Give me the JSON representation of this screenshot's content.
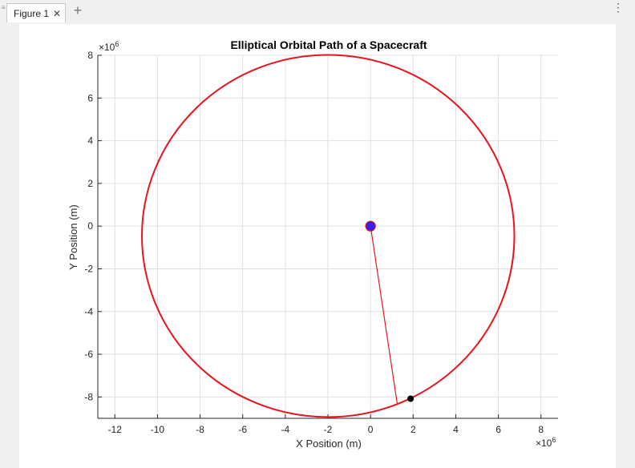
{
  "window": {
    "tab_label": "Figure 1",
    "close_glyph": "✕",
    "add_glyph": "+",
    "menu_glyph": "⋮"
  },
  "chart_data": {
    "type": "line",
    "title": "Elliptical Orbital Path of a Spacecraft",
    "xlabel": "X Position (m)",
    "ylabel": "Y Position (m)",
    "x_exponent": "×10",
    "x_exponent_power": "6",
    "y_exponent": "×10",
    "y_exponent_power": "6",
    "xlim": [
      -12.8,
      8.8
    ],
    "ylim": [
      -9.0,
      8.0
    ],
    "scale": 1000000,
    "x_ticks": [
      -12,
      -10,
      -8,
      -6,
      -4,
      -2,
      0,
      2,
      4,
      6,
      8
    ],
    "y_ticks": [
      -8,
      -6,
      -4,
      -2,
      0,
      2,
      4,
      6,
      8
    ],
    "grid": true,
    "orbit": {
      "center_x": -1.99,
      "center_y": -0.46,
      "semi_axis_x": 8.74,
      "semi_axis_y": 8.48,
      "color": "#e8141e"
    },
    "planet": {
      "x": 0,
      "y": 0,
      "color": "#3c1ef0",
      "edge": "#cc1111"
    },
    "spacecraft": {
      "x": 1.88,
      "y": -8.08,
      "color": "#000000"
    },
    "radius_line": {
      "from": [
        0,
        0
      ],
      "to": [
        1.25,
        -8.3
      ],
      "color": "#e8141e"
    }
  }
}
